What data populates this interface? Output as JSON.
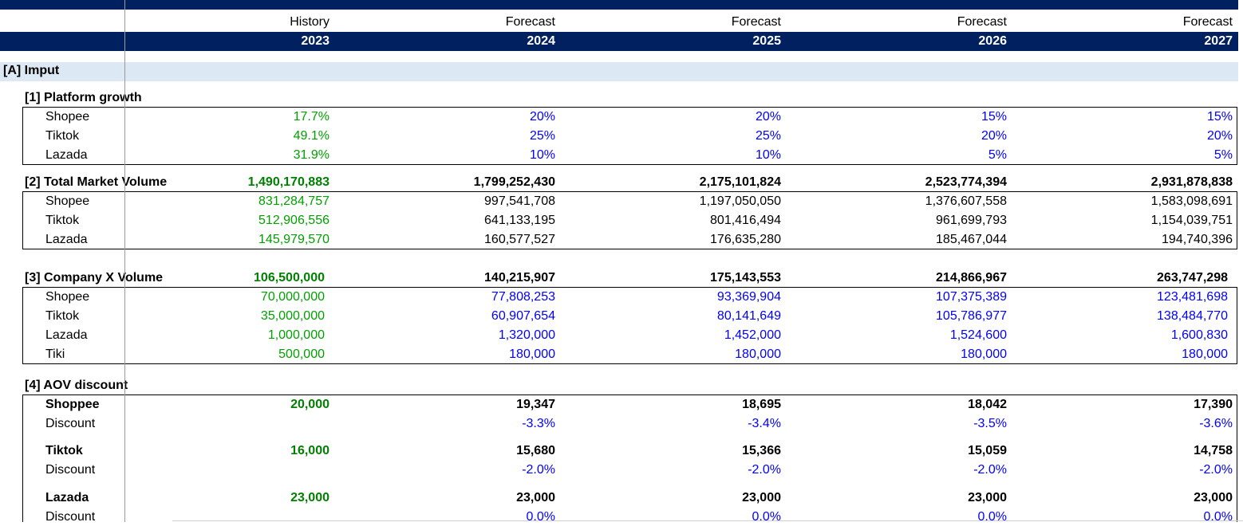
{
  "header": {
    "types": [
      "History",
      "Forecast",
      "Forecast",
      "Forecast",
      "Forecast"
    ],
    "years": [
      "2023",
      "2024",
      "2025",
      "2026",
      "2027"
    ]
  },
  "section_a": {
    "title": "[A] Imput"
  },
  "platform_growth": {
    "title": "[1] Platform growth",
    "rows": [
      {
        "label": "Shopee",
        "values": [
          "17.7%",
          "20%",
          "20%",
          "15%",
          "15%"
        ]
      },
      {
        "label": "Tiktok",
        "values": [
          "49.1%",
          "25%",
          "25%",
          "20%",
          "20%"
        ]
      },
      {
        "label": "Lazada",
        "values": [
          "31.9%",
          "10%",
          "10%",
          "5%",
          "5%"
        ]
      }
    ]
  },
  "total_market_volume": {
    "title": "[2] Total Market Volume",
    "totals": [
      "1,490,170,883",
      "1,799,252,430",
      "2,175,101,824",
      "2,523,774,394",
      "2,931,878,838"
    ],
    "rows": [
      {
        "label": "Shopee",
        "values": [
          "831,284,757",
          "997,541,708",
          "1,197,050,050",
          "1,376,607,558",
          "1,583,098,691"
        ]
      },
      {
        "label": "Tiktok",
        "values": [
          "512,906,556",
          "641,133,195",
          "801,416,494",
          "961,699,793",
          "1,154,039,751"
        ]
      },
      {
        "label": "Lazada",
        "values": [
          "145,979,570",
          "160,577,527",
          "176,635,280",
          "185,467,044",
          "194,740,396"
        ]
      }
    ]
  },
  "company_x_volume": {
    "title": "[3] Company X Volume",
    "totals": [
      "106,500,000",
      "140,215,907",
      "175,143,553",
      "214,866,967",
      "263,747,298"
    ],
    "rows": [
      {
        "label": "Shopee",
        "values": [
          "70,000,000",
          "77,808,253",
          "93,369,904",
          "107,375,389",
          "123,481,698"
        ]
      },
      {
        "label": "Tiktok",
        "values": [
          "35,000,000",
          "60,907,654",
          "80,141,649",
          "105,786,977",
          "138,484,770"
        ]
      },
      {
        "label": "Lazada",
        "values": [
          "1,000,000",
          "1,320,000",
          "1,452,000",
          "1,524,600",
          "1,600,830"
        ]
      },
      {
        "label": "Tiki",
        "values": [
          "500,000",
          "180,000",
          "180,000",
          "180,000",
          "180,000"
        ]
      }
    ]
  },
  "aov_discount": {
    "title": "[4] AOV discount",
    "groups": [
      {
        "label": "Shoppee",
        "values": [
          "20,000",
          "19,347",
          "18,695",
          "18,042",
          "17,390"
        ],
        "discount_label": "Discount",
        "discounts": [
          "",
          "-3.3%",
          "-3.4%",
          "-3.5%",
          "-3.6%"
        ]
      },
      {
        "label": "Tiktok",
        "values": [
          "16,000",
          "15,680",
          "15,366",
          "15,059",
          "14,758"
        ],
        "discount_label": "Discount",
        "discounts": [
          "",
          "-2.0%",
          "-2.0%",
          "-2.0%",
          "-2.0%"
        ]
      },
      {
        "label": "Lazada",
        "values": [
          "23,000",
          "23,000",
          "23,000",
          "23,000",
          "23,000"
        ],
        "discount_label": "Discount",
        "discounts": [
          "",
          "0.0%",
          "0.0%",
          "0.0%",
          "0.0%"
        ]
      }
    ]
  }
}
